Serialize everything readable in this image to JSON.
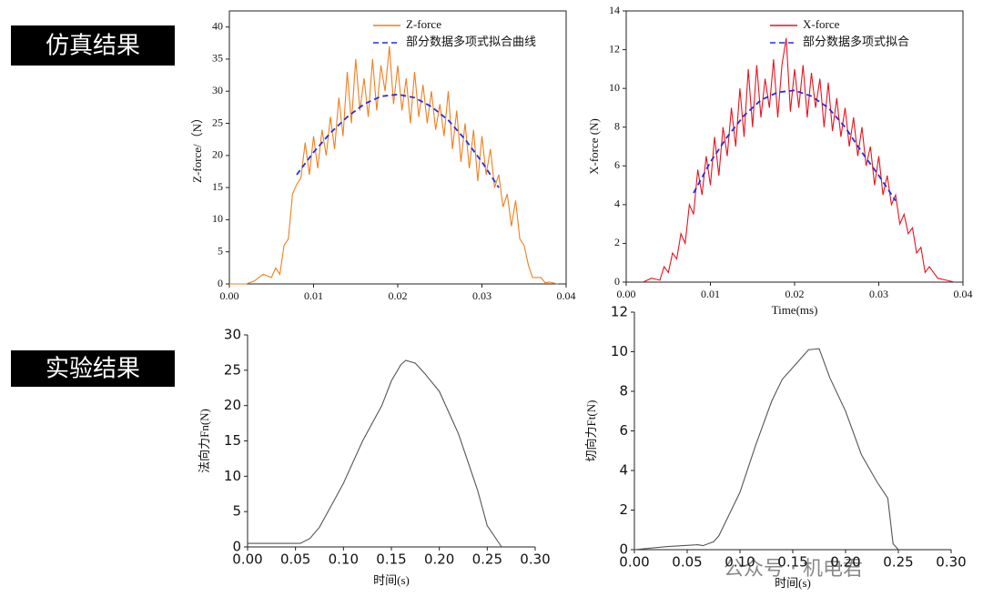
{
  "section_labels": [
    "仿真结果",
    "实验结果"
  ],
  "watermark": "公众号 · 机电君",
  "chart_data": [
    {
      "type": "line",
      "ylabel": "Z-force/（N）",
      "frame": true,
      "legend": "upper right",
      "xlim": [
        0,
        0.04
      ],
      "ylim": [
        0,
        42.5
      ],
      "xticks": [
        {
          "value": 0,
          "label": "0.00"
        },
        {
          "value": 0.01,
          "label": "0.01"
        },
        {
          "value": 0.02,
          "label": "0.02"
        },
        {
          "value": 0.03,
          "label": "0.03"
        },
        {
          "value": 0.04,
          "label": "0.04"
        }
      ],
      "yticks": [
        0,
        5,
        10,
        15,
        20,
        25,
        30,
        35,
        40
      ],
      "series": [
        {
          "name": "Z-force",
          "color": "#f07f1e",
          "linestyle": "solid",
          "x": [
            0,
            0.002,
            0.003,
            0.004,
            0.005,
            0.0055,
            0.006,
            0.0065,
            0.007,
            0.0075,
            0.008,
            0.0085,
            0.009,
            0.0095,
            0.01,
            0.0105,
            0.011,
            0.0115,
            0.012,
            0.0125,
            0.013,
            0.0135,
            0.014,
            0.0145,
            0.015,
            0.0155,
            0.016,
            0.0165,
            0.017,
            0.0175,
            0.018,
            0.0185,
            0.019,
            0.0195,
            0.02,
            0.0205,
            0.021,
            0.0215,
            0.022,
            0.0225,
            0.023,
            0.0235,
            0.024,
            0.0245,
            0.025,
            0.0255,
            0.026,
            0.0265,
            0.027,
            0.0275,
            0.028,
            0.0285,
            0.029,
            0.0295,
            0.03,
            0.0305,
            0.031,
            0.0315,
            0.032,
            0.0325,
            0.033,
            0.0335,
            0.034,
            0.0345,
            0.035,
            0.0355,
            0.036,
            0.037,
            0.0375,
            0.038,
            0.039
          ],
          "values": [
            0,
            0,
            0.5,
            1.5,
            1,
            2.5,
            1.5,
            6,
            7,
            14,
            15.5,
            16.5,
            22,
            17,
            23,
            18,
            24,
            20,
            26,
            21,
            29,
            23,
            33,
            25,
            35,
            27,
            32,
            26,
            35,
            27,
            34,
            30,
            37,
            28,
            34,
            27,
            32,
            25,
            33,
            26,
            31,
            25,
            30,
            24,
            28,
            23,
            30,
            21,
            27,
            19,
            25,
            18,
            24,
            16,
            23,
            17,
            21,
            15,
            17,
            12,
            14,
            9,
            13,
            7,
            6,
            3,
            1,
            1,
            0.2,
            0.3,
            0
          ]
        },
        {
          "name": "部分数据多项式拟合曲线",
          "color": "#1f2fe0",
          "linestyle": "dashed",
          "x": [
            0.008,
            0.01,
            0.012,
            0.014,
            0.016,
            0.018,
            0.02,
            0.022,
            0.024,
            0.026,
            0.028,
            0.03,
            0.032
          ],
          "values": [
            17,
            20.5,
            23.5,
            26,
            28,
            29.2,
            29.5,
            29,
            27.6,
            25.5,
            22.5,
            19,
            15
          ]
        }
      ]
    },
    {
      "type": "line",
      "xlabel": "Time(ms)",
      "ylabel": "X-force (N)",
      "frame": true,
      "legend": "upper right",
      "xlim": [
        0,
        0.04
      ],
      "ylim": [
        0,
        14
      ],
      "xticks": [
        {
          "value": 0,
          "label": "0.00"
        },
        {
          "value": 0.01,
          "label": "0.01"
        },
        {
          "value": 0.02,
          "label": "0.02"
        },
        {
          "value": 0.03,
          "label": "0.03"
        },
        {
          "value": 0.04,
          "label": "0.04"
        }
      ],
      "yticks": [
        0,
        2,
        4,
        6,
        8,
        10,
        12,
        14
      ],
      "series": [
        {
          "name": "X-force",
          "color": "#e8141e",
          "linestyle": "solid",
          "x": [
            0.002,
            0.003,
            0.004,
            0.0045,
            0.005,
            0.0055,
            0.006,
            0.0065,
            0.007,
            0.0075,
            0.008,
            0.0085,
            0.009,
            0.0095,
            0.01,
            0.0105,
            0.011,
            0.0115,
            0.012,
            0.0125,
            0.013,
            0.0135,
            0.014,
            0.0145,
            0.015,
            0.0155,
            0.016,
            0.0165,
            0.017,
            0.0175,
            0.018,
            0.0185,
            0.019,
            0.0195,
            0.02,
            0.0205,
            0.021,
            0.0215,
            0.022,
            0.0225,
            0.023,
            0.0235,
            0.024,
            0.0245,
            0.025,
            0.0255,
            0.026,
            0.0265,
            0.027,
            0.0275,
            0.028,
            0.0285,
            0.029,
            0.0295,
            0.03,
            0.0305,
            0.031,
            0.0315,
            0.032,
            0.0325,
            0.033,
            0.0335,
            0.034,
            0.0345,
            0.035,
            0.0355,
            0.036,
            0.037,
            0.038,
            0.039
          ],
          "values": [
            0,
            0.2,
            0.1,
            0.8,
            0.5,
            1.5,
            1.2,
            2.5,
            2,
            4,
            3.5,
            5.8,
            4.5,
            6.5,
            5,
            7.5,
            5.5,
            8,
            6.5,
            9,
            7,
            10,
            7.5,
            11,
            8,
            11.2,
            8.5,
            10.5,
            9,
            11.5,
            8.5,
            11.2,
            12.6,
            8.8,
            11,
            9,
            11.2,
            8.5,
            10.8,
            9,
            10.5,
            8,
            10.3,
            7.8,
            9.5,
            7.5,
            9,
            7,
            8.5,
            6.5,
            8,
            6,
            7,
            5,
            6.5,
            4.5,
            5.5,
            4,
            4.5,
            3,
            3.5,
            2.5,
            2.8,
            1.5,
            1.8,
            0.5,
            0.8,
            0.2,
            0.1,
            0
          ]
        },
        {
          "name": "部分数据多项式拟合",
          "color": "#1f2fe0",
          "linestyle": "dashed",
          "x": [
            0.008,
            0.01,
            0.012,
            0.014,
            0.016,
            0.018,
            0.02,
            0.022,
            0.024,
            0.026,
            0.028,
            0.03,
            0.032
          ],
          "values": [
            4.6,
            6.2,
            7.5,
            8.6,
            9.4,
            9.8,
            9.9,
            9.6,
            9,
            8,
            6.7,
            5.5,
            4.2
          ]
        }
      ]
    },
    {
      "type": "line",
      "xlabel": "时间(s)",
      "ylabel": "法向力Fn(N)",
      "frame": false,
      "xlim": [
        0,
        0.3
      ],
      "ylim": [
        0,
        30
      ],
      "xticks": [
        {
          "value": 0,
          "label": "0.00"
        },
        {
          "value": 0.05,
          "label": "0.05"
        },
        {
          "value": 0.1,
          "label": "0.10"
        },
        {
          "value": 0.15,
          "label": "0.15"
        },
        {
          "value": 0.2,
          "label": "0.20"
        },
        {
          "value": 0.25,
          "label": "0.25"
        },
        {
          "value": 0.3,
          "label": "0.30"
        }
      ],
      "yticks": [
        0,
        5,
        10,
        15,
        20,
        25,
        30
      ],
      "series": [
        {
          "color": "#555555",
          "linestyle": "solid",
          "x": [
            0,
            0.02,
            0.04,
            0.055,
            0.065,
            0.075,
            0.09,
            0.1,
            0.12,
            0.14,
            0.15,
            0.16,
            0.165,
            0.175,
            0.185,
            0.2,
            0.22,
            0.24,
            0.25,
            0.265
          ],
          "values": [
            0.5,
            0.5,
            0.5,
            0.5,
            1.2,
            2.8,
            6.5,
            9,
            15,
            20,
            23.5,
            25.8,
            26.4,
            26,
            24.5,
            22,
            16,
            8,
            3,
            0
          ]
        }
      ]
    },
    {
      "type": "line",
      "xlabel": "时间(s)",
      "ylabel": "切向力Ft(N)",
      "frame": false,
      "xlim": [
        0,
        0.3
      ],
      "ylim": [
        0,
        12
      ],
      "xticks": [
        {
          "value": 0,
          "label": "0.00"
        },
        {
          "value": 0.05,
          "label": "0.05"
        },
        {
          "value": 0.1,
          "label": "0.10"
        },
        {
          "value": 0.15,
          "label": "0.15"
        },
        {
          "value": 0.2,
          "label": "0.20"
        },
        {
          "value": 0.25,
          "label": "0.25"
        },
        {
          "value": 0.3,
          "label": "0.30"
        }
      ],
      "yticks": [
        0,
        2,
        4,
        6,
        8,
        10,
        12
      ],
      "series": [
        {
          "color": "#555555",
          "linestyle": "solid",
          "x": [
            0,
            0.03,
            0.06,
            0.065,
            0.075,
            0.08,
            0.09,
            0.1,
            0.115,
            0.13,
            0.14,
            0.155,
            0.165,
            0.175,
            0.185,
            0.2,
            0.215,
            0.23,
            0.24,
            0.245,
            0.25
          ],
          "values": [
            0,
            0.15,
            0.25,
            0.2,
            0.4,
            0.7,
            1.8,
            2.9,
            5.3,
            7.5,
            8.6,
            9.5,
            10.1,
            10.15,
            8.7,
            7,
            4.8,
            3.4,
            2.6,
            0.3,
            0
          ]
        }
      ]
    }
  ]
}
